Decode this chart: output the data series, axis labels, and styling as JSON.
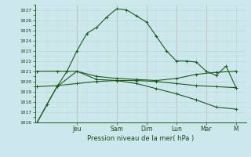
{
  "xlabel": "Pression niveau de la mer( hPa )",
  "background_color": "#cce8ec",
  "grid_color_major": "#b8d8dc",
  "grid_color_minor": "#c8e0e4",
  "day_sep_color": "#d8a0a0",
  "line_color": "#1a5c1a",
  "ylim": [
    1016,
    1027.5
  ],
  "yticks": [
    1016,
    1017,
    1018,
    1019,
    1020,
    1021,
    1022,
    1023,
    1024,
    1025,
    1026,
    1027
  ],
  "day_labels": [
    "Jeu",
    "Sam",
    "Dim",
    "Lun",
    "Mar",
    "M"
  ],
  "day_positions": [
    2.0,
    4.0,
    5.5,
    7.0,
    8.5,
    10.0
  ],
  "xlim": [
    -0.1,
    10.5
  ],
  "series": [
    {
      "x": [
        0,
        0.5,
        1.0,
        1.5,
        2.0,
        2.5,
        3.0,
        3.5,
        4.0,
        4.5,
        5.0,
        5.5,
        6.0,
        6.5,
        7.0,
        7.5,
        8.0,
        8.5,
        9.0,
        9.5,
        10.0
      ],
      "y": [
        1016.0,
        1017.8,
        1019.5,
        1021.0,
        1023.0,
        1024.7,
        1025.3,
        1026.3,
        1027.1,
        1027.0,
        1026.4,
        1025.8,
        1024.4,
        1023.0,
        1022.0,
        1022.0,
        1021.9,
        1021.0,
        1020.6,
        1021.5,
        1019.4
      ]
    },
    {
      "x": [
        0,
        1.0,
        2.0,
        3.0,
        4.0,
        5.0,
        6.0,
        7.0,
        8.0,
        9.0,
        10.0
      ],
      "y": [
        1016.0,
        1019.5,
        1021.0,
        1020.2,
        1020.1,
        1019.8,
        1019.3,
        1018.8,
        1018.2,
        1017.5,
        1017.3
      ]
    },
    {
      "x": [
        0,
        1.0,
        2.0,
        3.0,
        4.0,
        5.0,
        6.0,
        7.0,
        8.0,
        9.0,
        10.0
      ],
      "y": [
        1021.0,
        1021.0,
        1021.0,
        1020.5,
        1020.3,
        1020.2,
        1020.1,
        1020.3,
        1020.7,
        1020.9,
        1021.0
      ]
    },
    {
      "x": [
        0,
        1.0,
        2.0,
        3.0,
        4.0,
        5.0,
        6.0,
        7.0,
        8.0,
        9.0,
        10.0
      ],
      "y": [
        1019.5,
        1019.6,
        1019.8,
        1020.0,
        1020.1,
        1020.1,
        1020.0,
        1019.8,
        1019.6,
        1019.5,
        1019.4
      ]
    }
  ]
}
